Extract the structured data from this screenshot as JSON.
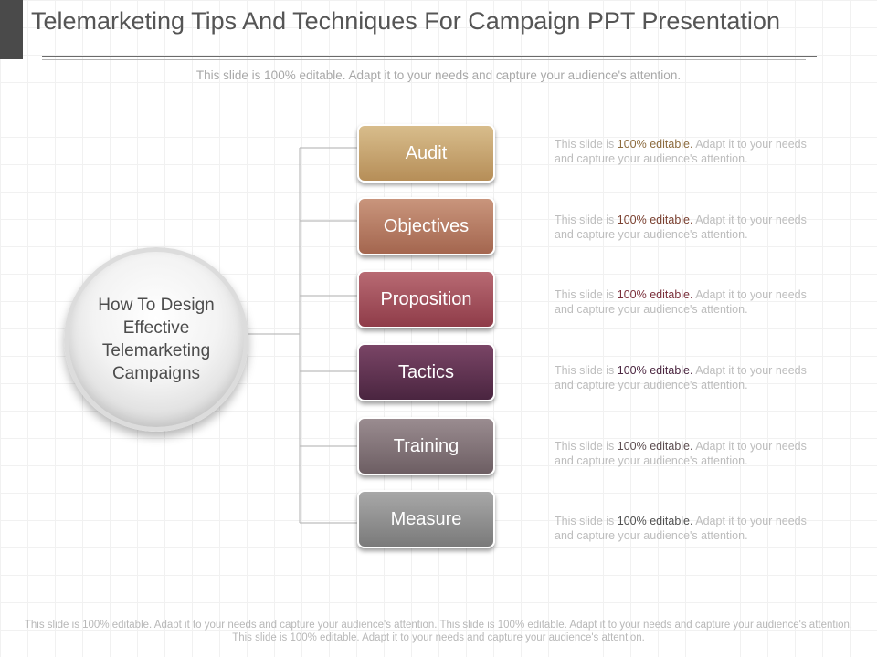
{
  "header": {
    "title": "Telemarketing Tips And Techniques For Campaign PPT Presentation",
    "subtitle": "This slide is 100% editable. Adapt it to your needs and capture your audience's attention."
  },
  "center": {
    "label": "How To Design Effective Telemarketing Campaigns"
  },
  "steps": [
    {
      "label": "Audit",
      "color_top": "#d8bd8c",
      "color_bottom": "#b68e58"
    },
    {
      "label": "Objectives",
      "color_top": "#c9957c",
      "color_bottom": "#a4664f"
    },
    {
      "label": "Proposition",
      "color_top": "#b86a73",
      "color_bottom": "#8f3c49"
    },
    {
      "label": "Tactics",
      "color_top": "#7a4566",
      "color_bottom": "#4a2540"
    },
    {
      "label": "Training",
      "color_top": "#9a8c90",
      "color_bottom": "#6d5e63"
    },
    {
      "label": "Measure",
      "color_top": "#a8a8a8",
      "color_bottom": "#7a7a7a"
    }
  ],
  "descriptions": [
    {
      "pre": "This slide is ",
      "highlight": "100% editable.",
      "post": " Adapt it to your needs and capture your audience's attention."
    },
    {
      "pre": "This slide is ",
      "highlight": "100% editable.",
      "post": " Adapt it to your needs and capture your audience's attention."
    },
    {
      "pre": "This slide is ",
      "highlight": "100% editable.",
      "post": " Adapt it to your needs and capture your audience's attention."
    },
    {
      "pre": "This slide is ",
      "highlight": "100% editable.",
      "post": " Adapt it to your needs and capture your audience's attention."
    },
    {
      "pre": "This slide is ",
      "highlight": "100% editable.",
      "post": " Adapt it to your needs and capture your audience's attention."
    },
    {
      "pre": "This slide is ",
      "highlight": "100% editable.",
      "post": " Adapt it to your needs and capture your audience's attention."
    }
  ],
  "footer": {
    "text": "This slide is 100% editable. Adapt it to your needs and capture your audience's attention. This slide is 100% editable. Adapt it to your needs and capture your audience's attention. This slide is 100% editable. Adapt it to your needs and capture your audience's attention."
  }
}
